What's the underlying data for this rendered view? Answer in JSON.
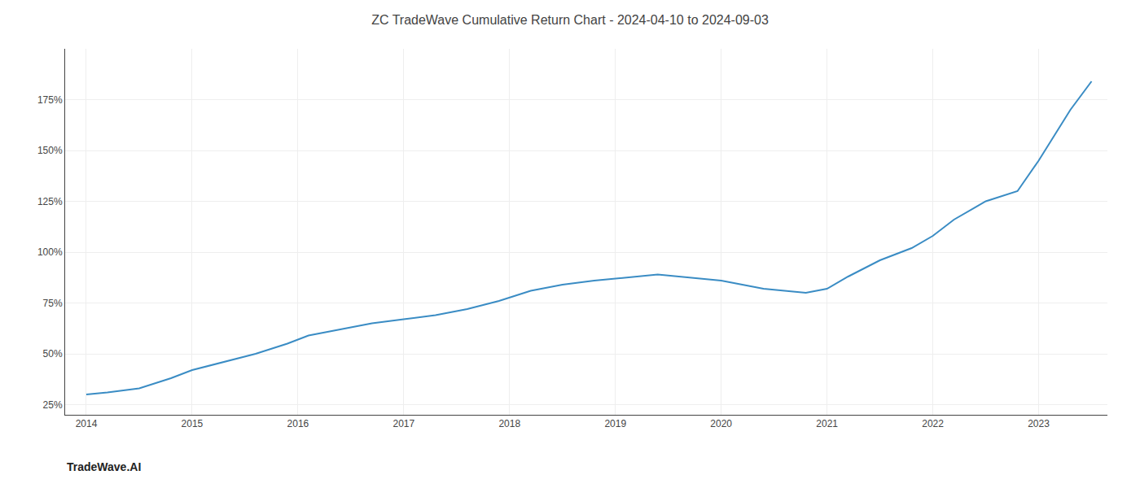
{
  "chart_data": {
    "type": "line",
    "title": "ZC TradeWave Cumulative Return Chart - 2024-04-10 to 2024-09-03",
    "annotations": [
      "TradeWave.AI"
    ],
    "color": "#3a8cc4",
    "x": [
      2014.0,
      2014.2,
      2014.5,
      2014.8,
      2015.0,
      2015.3,
      2015.6,
      2015.9,
      2016.1,
      2016.4,
      2016.7,
      2017.0,
      2017.3,
      2017.6,
      2017.9,
      2018.2,
      2018.5,
      2018.8,
      2019.0,
      2019.2,
      2019.4,
      2019.6,
      2019.8,
      2020.0,
      2020.2,
      2020.4,
      2020.6,
      2020.8,
      2021.0,
      2021.2,
      2021.5,
      2021.8,
      2022.0,
      2022.2,
      2022.5,
      2022.8,
      2023.0,
      2023.3,
      2023.5
    ],
    "values": [
      30,
      31,
      33,
      38,
      42,
      46,
      50,
      55,
      59,
      62,
      65,
      67,
      69,
      72,
      76,
      81,
      84,
      86,
      87,
      88,
      89,
      88,
      87,
      86,
      84,
      82,
      81,
      80,
      82,
      88,
      96,
      102,
      108,
      116,
      125,
      130,
      145,
      170,
      184
    ],
    "xlim": [
      2013.8,
      2023.65
    ],
    "ylim": [
      20,
      200
    ],
    "xticks": [
      2014,
      2015,
      2016,
      2017,
      2018,
      2019,
      2020,
      2021,
      2022,
      2023
    ],
    "yticks": [
      {
        "value": 25,
        "label": "25%"
      },
      {
        "value": 50,
        "label": "50%"
      },
      {
        "value": 75,
        "label": "75%"
      },
      {
        "value": 100,
        "label": "100%"
      },
      {
        "value": 125,
        "label": "125%"
      },
      {
        "value": 150,
        "label": "150%"
      },
      {
        "value": 175,
        "label": "175%"
      }
    ],
    "grid": true
  }
}
